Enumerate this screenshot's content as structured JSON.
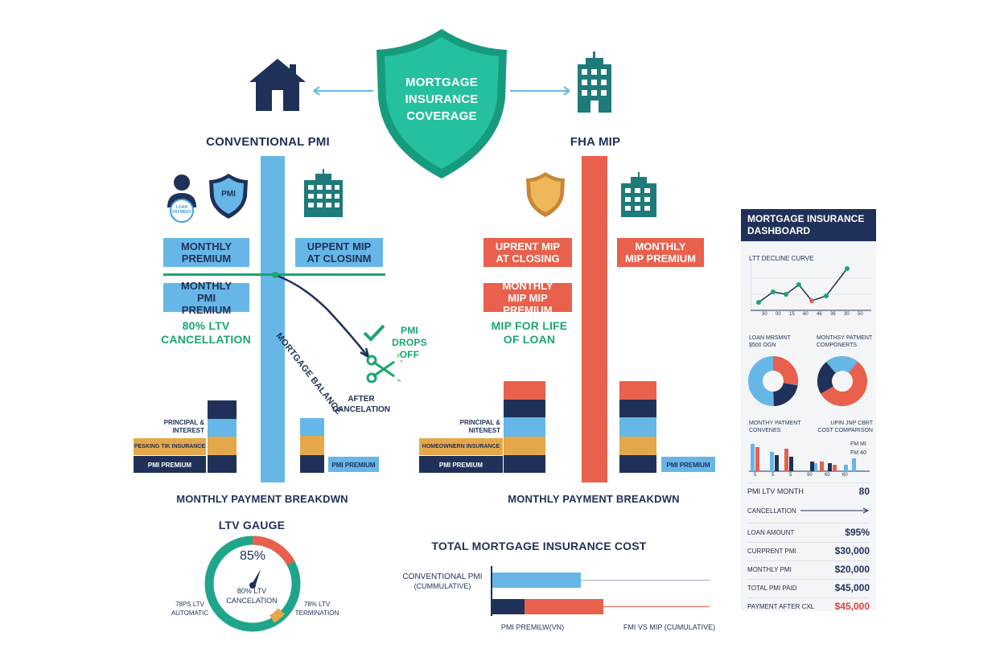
{
  "header": {
    "center_title": "MORTGAGE INSURANCE COVERAGE"
  },
  "left": {
    "title": "CONVENTIONAL PMI",
    "shield_label": "PMI",
    "person_badge": "LOAN PAYMENT",
    "box_monthly_premium": "MONTHLY PREMIUM",
    "box_upfront": "UPPENT MIP AT CLOSINM",
    "box_monthly_pmi": "MONTHLY PMI PREMIUM",
    "cancellation": "80% LTV CANCELLATION",
    "balance_label": "MORTGAGE BALANCE",
    "pmi_drops": "PMI DROPS OFF",
    "after_cancel": "AFTER CANCELATION",
    "stack_labels": [
      "PRINCIPAL & INTEREST",
      "PESKING TIK INSURANCE",
      "PMI PREMIUM"
    ],
    "after_label": "PMI PREMIUM",
    "breakdown_title": "MONTHLY PAYMENT BREAKDWN"
  },
  "right": {
    "title": "FHA MIP",
    "box_upfront": "UPRENT MIP AT CLOSING",
    "box_monthly": "MONTHLY MIP PREMIUM",
    "box_monthly_mip": "MONTHLY MIP MIP PREMIUM",
    "life_of_loan": "MIP FOR LIFE OF LOAN",
    "stack_labels": [
      "PRINCIPAL & NITENEST",
      "HOMEOWNERN INSURANCE",
      "PMI PREMIUM"
    ],
    "after_label": "PMI PREMIUM",
    "breakdown_title": "MONTHLY PAYMENT BREAKDWN"
  },
  "gauge": {
    "title": "LTV GAUGE",
    "value": "85%",
    "center_label": "80% LTV CANCELATION",
    "left_label": "78PS LTV AUTOMATIC",
    "right_label": "78% LTV TERMINATION",
    "fraction": 0.85
  },
  "total_cost": {
    "title": "TOTAL MORTGAGE INSURANCE COST",
    "row1_label": "CONVENTIONAL PMI",
    "row1_sub": "(CUMMULATIVE)",
    "bottom_left": "PMI PREMILW(VN)",
    "bottom_right": "FMI vs MIP (CUMULATIVE)"
  },
  "dashboard": {
    "title": "MORTGAGE INSURANCE DASHBOARD",
    "line_title": "LTT DECLINE CURVE",
    "line_ticks": [
      "30",
      "00",
      "15",
      "60",
      "46",
      "36",
      "30",
      "50"
    ],
    "donut1_title": "LOAN MRSMNT $500 OGN",
    "donut2_title": "MONTHSY PATMENT COMPONERTS",
    "bar1_title": "MONTHY PATMENT CONVENES",
    "bar2_title": "UPIN JNP CBRT COST COMPARISON",
    "bar_legend1": "FM MI",
    "bar_legend2": "FM 40",
    "bar_ticks": [
      "5",
      "5",
      "5",
      "90",
      "60",
      "60"
    ],
    "rows": [
      {
        "label": "PMI LTV MONTH",
        "value": "80"
      },
      {
        "label": "CANCELLATION",
        "value": ""
      },
      {
        "label": "LOAN AMOUNT",
        "value": "$95%"
      },
      {
        "label": "CURPRENT PMI",
        "value": "$30,000"
      },
      {
        "label": "MONTHLY PMI",
        "value": "$20,000"
      },
      {
        "label": "TOTAL PMI PAID",
        "value": "$45,000"
      },
      {
        "label": "PAYMENT AFTER CXL",
        "value": "$45,000"
      }
    ]
  },
  "colors": {
    "navy": "#1f3158",
    "blue": "#66b7e8",
    "red": "#e9604c",
    "orange": "#e4a84a",
    "teal": "#1fa58a",
    "green": "#1aa66e"
  }
}
